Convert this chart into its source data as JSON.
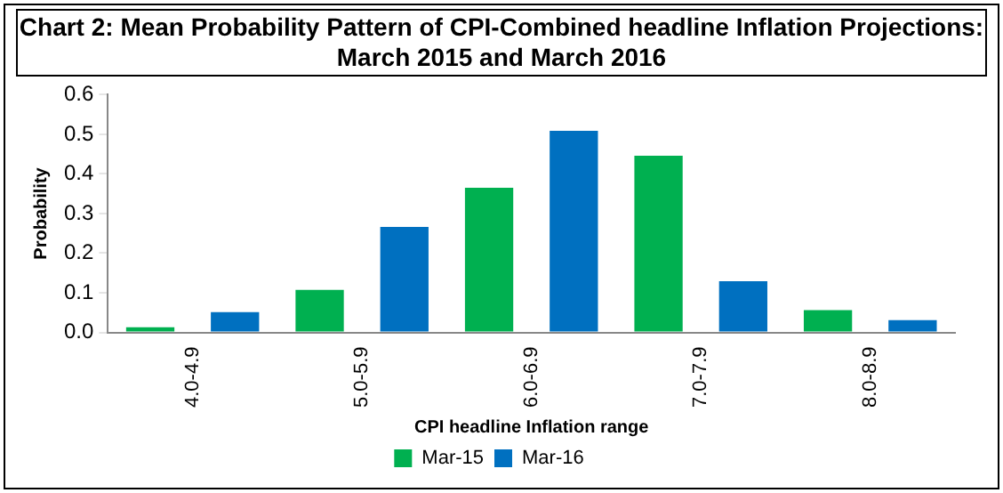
{
  "chart_data": {
    "type": "bar",
    "title": "Chart 2: Mean Probability Pattern of CPI-Combined headline Inflation Projections: March 2015 and March 2016",
    "xlabel": "CPI headline Inflation range",
    "ylabel": "Probability",
    "categories": [
      "4.0-4.9",
      "5.0-5.9",
      "6.0-6.9",
      "7.0-7.9",
      "8.0-8.9"
    ],
    "series": [
      {
        "name": "Mar-15",
        "color": "#00b050",
        "values": [
          0.013,
          0.107,
          0.365,
          0.446,
          0.056
        ]
      },
      {
        "name": "Mar-16",
        "color": "#0070c0",
        "values": [
          0.051,
          0.266,
          0.509,
          0.129,
          0.031
        ]
      }
    ],
    "ylim": [
      0,
      0.6
    ],
    "yticks": [
      {
        "value": 0,
        "label": "0.0"
      },
      0.1,
      0.2,
      0.3,
      0.4,
      0.5,
      0.6
    ],
    "grid": false,
    "legend": "bottom"
  }
}
